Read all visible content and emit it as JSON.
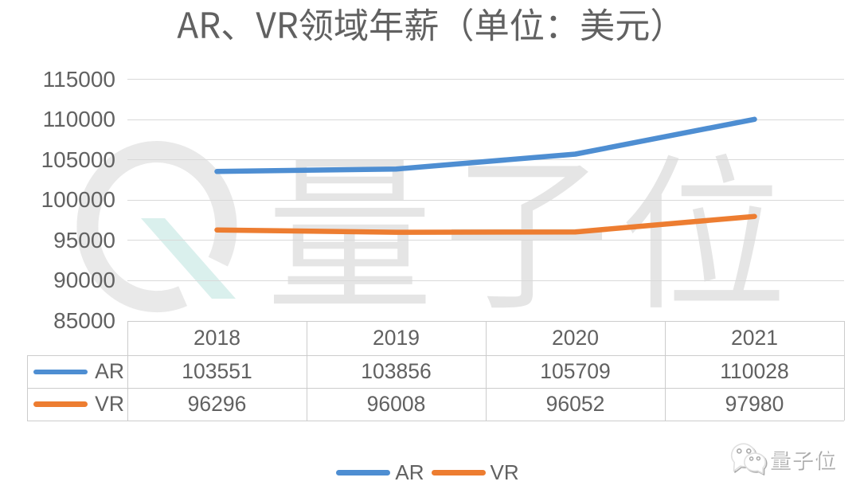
{
  "chart_data": {
    "type": "line",
    "title": "AR、VR领域年薪（单位：美元）",
    "categories": [
      "2018",
      "2019",
      "2020",
      "2021"
    ],
    "series": [
      {
        "name": "AR",
        "color": "#4e8ed2",
        "values": [
          103551,
          103856,
          105709,
          110028
        ]
      },
      {
        "name": "VR",
        "color": "#ed7d31",
        "values": [
          96296,
          96008,
          96052,
          97980
        ]
      }
    ],
    "ylim": [
      85000,
      115000
    ],
    "ytick_step": 5000,
    "yticks": [
      115000,
      110000,
      105000,
      100000,
      95000,
      90000,
      85000
    ],
    "grid": true,
    "legend_position": "bottom",
    "show_data_table": true,
    "xlabel": "",
    "ylabel": ""
  },
  "watermark": {
    "text": "量子位",
    "icon": "qbitai-q-logo"
  },
  "brand": {
    "text": "量子位",
    "icon": "wechat-bubbles-icon"
  },
  "style": {
    "background": "#ffffff",
    "text_color": "#616161",
    "gridline_color": "#d9d9d9",
    "table_border_color": "#cccccc",
    "watermark_color": "#e5e5e5",
    "watermark_slash_color": "#daf0ed"
  }
}
